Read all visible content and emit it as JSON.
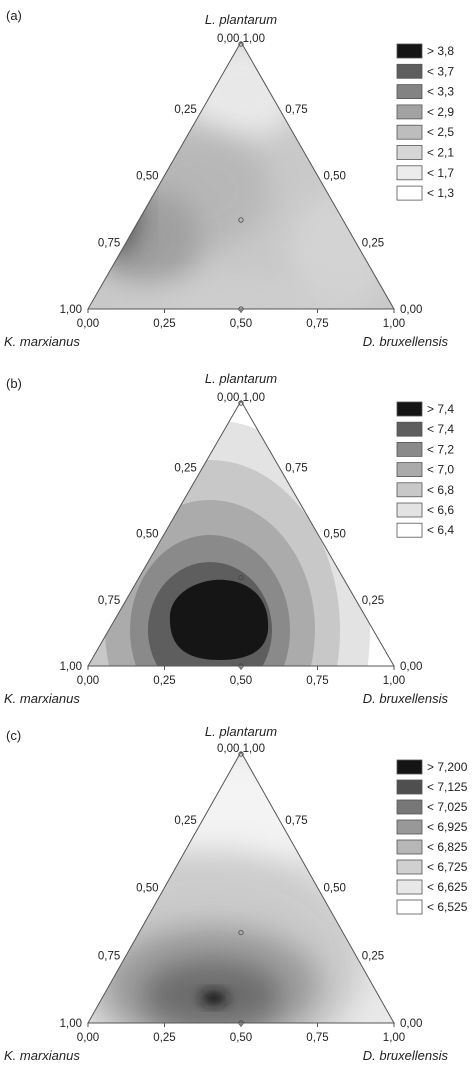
{
  "chart_data": [
    {
      "type": "heatmap",
      "subtype": "ternary-contour",
      "panel_label": "(a)",
      "vertices": {
        "top": "L. plantarum",
        "left": "K. marxianus",
        "right": "D. bruxellensis"
      },
      "top_vertex_label": "0,00 1,00",
      "bottom_ticks": [
        "0,00",
        "0,25",
        "0,50",
        "0,75",
        "1,00"
      ],
      "left_ticks": [
        "1,00",
        "0,75",
        "0,50",
        "0,25"
      ],
      "right_ticks": [
        "0,75",
        "0,50",
        "0,25",
        "0,00"
      ],
      "legend": {
        "placement": "top-right",
        "entries": [
          {
            "label": "> 3,8",
            "color": "#151515"
          },
          {
            "label": "< 3,7",
            "color": "#5e5e5e"
          },
          {
            "label": "< 3,3",
            "color": "#838383"
          },
          {
            "label": "< 2,9",
            "color": "#a2a2a2"
          },
          {
            "label": "< 2,5",
            "color": "#bdbdbd"
          },
          {
            "label": "< 2,1",
            "color": "#d6d6d6"
          },
          {
            "label": "< 1,7",
            "color": "#ececec"
          },
          {
            "label": "< 1,3",
            "color": "#ffffff"
          }
        ]
      },
      "design_points": [
        {
          "L": 0.3333,
          "K": 0.3333,
          "D": 0.3333
        },
        {
          "L": 0,
          "K": 0.5,
          "D": 0.5
        },
        {
          "L": 1,
          "K": 0,
          "D": 0
        }
      ]
    },
    {
      "type": "heatmap",
      "subtype": "ternary-contour",
      "panel_label": "(b)",
      "vertices": {
        "top": "L. plantarum",
        "left": "K. marxianus",
        "right": "D. bruxellensis"
      },
      "top_vertex_label": "0,00 1,00",
      "bottom_ticks": [
        "0,00",
        "0,25",
        "0,50",
        "0,75",
        "1,00"
      ],
      "left_ticks": [
        "1,00",
        "0,75",
        "0,50",
        "0,25"
      ],
      "right_ticks": [
        "0,75",
        "0,50",
        "0,25",
        "0,00"
      ],
      "legend": {
        "placement": "top-right",
        "entries": [
          {
            "label": "> 7,4",
            "color": "#151515"
          },
          {
            "label": "< 7,4",
            "color": "#5e5e5e"
          },
          {
            "label": "< 7,2",
            "color": "#8a8a8a"
          },
          {
            "label": "< 7,0",
            "color": "#ababab"
          },
          {
            "label": "< 6,8",
            "color": "#c8c8c8"
          },
          {
            "label": "< 6,6",
            "color": "#e3e3e3"
          },
          {
            "label": "< 6,4",
            "color": "#ffffff"
          }
        ]
      },
      "design_points": [
        {
          "L": 0.3333,
          "K": 0.3333,
          "D": 0.3333
        },
        {
          "L": 0,
          "K": 0.5,
          "D": 0.5
        },
        {
          "L": 1,
          "K": 0,
          "D": 0
        }
      ]
    },
    {
      "type": "heatmap",
      "subtype": "ternary-contour",
      "panel_label": "(c)",
      "vertices": {
        "top": "L. plantarum",
        "left": "K. marxianus",
        "right": "D. bruxellensis"
      },
      "top_vertex_label": "0,00 1,00",
      "bottom_ticks": [
        "0,00",
        "0,25",
        "0,50",
        "0,75",
        "1,00"
      ],
      "left_ticks": [
        "1,00",
        "0,75",
        "0,50",
        "0,25"
      ],
      "right_ticks": [
        "0,75",
        "0,50",
        "0,25",
        "0,00"
      ],
      "legend": {
        "placement": "top-right",
        "entries": [
          {
            "label": "> 7,200",
            "color": "#151515"
          },
          {
            "label": "< 7,125",
            "color": "#4f4f4f"
          },
          {
            "label": "< 7,025",
            "color": "#777777"
          },
          {
            "label": "< 6,925",
            "color": "#989898"
          },
          {
            "label": "< 6,825",
            "color": "#b6b6b6"
          },
          {
            "label": "< 6,725",
            "color": "#d0d0d0"
          },
          {
            "label": "< 6,625",
            "color": "#e8e8e8"
          },
          {
            "label": "< 6,525",
            "color": "#ffffff"
          }
        ]
      },
      "design_points": [
        {
          "L": 0.3333,
          "K": 0.3333,
          "D": 0.3333
        },
        {
          "L": 0,
          "K": 0.5,
          "D": 0.5
        },
        {
          "L": 1,
          "K": 0,
          "D": 0
        }
      ]
    }
  ]
}
